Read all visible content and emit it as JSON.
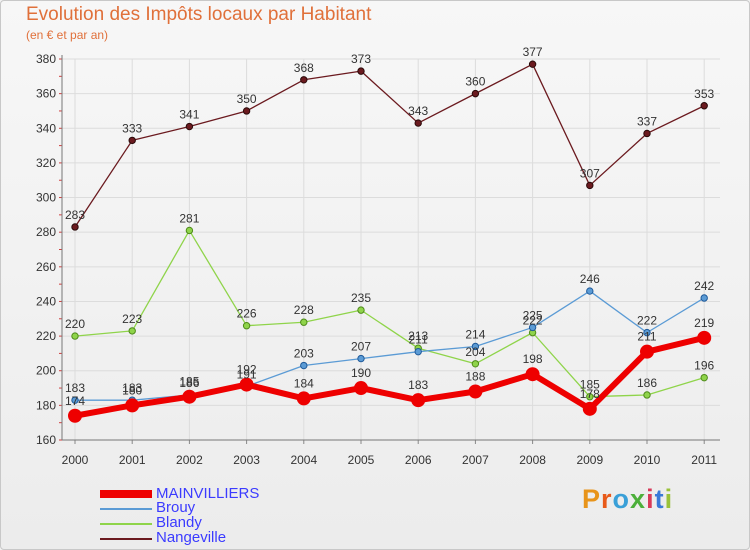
{
  "chart_data": {
    "type": "line",
    "title": "Evolution des Impôts locaux par Habitant",
    "subtitle": "(en € et par an)",
    "xlabel": "",
    "ylabel": "",
    "ylim": [
      160,
      380
    ],
    "yticks": [
      "160",
      "180",
      "200",
      "220",
      "240",
      "260",
      "280",
      "300",
      "320",
      "340",
      "360",
      "380"
    ],
    "categories": [
      "2000",
      "2001",
      "2002",
      "2003",
      "2004",
      "2005",
      "2006",
      "2007",
      "2008",
      "2009",
      "2010",
      "2011"
    ],
    "series": [
      {
        "name": "Nangeville",
        "color": "#6b1a1f",
        "values": [
          283,
          333,
          341,
          350,
          368,
          373,
          343,
          360,
          377,
          307,
          337,
          353
        ]
      },
      {
        "name": "Blandy",
        "color": "#8fd44a",
        "values": [
          220,
          223,
          281,
          226,
          228,
          235,
          213,
          204,
          222,
          185,
          186,
          196
        ]
      },
      {
        "name": "Brouy",
        "color": "#5b9bd5",
        "values": [
          183,
          183,
          186,
          191,
          203,
          207,
          211,
          214,
          225,
          246,
          222,
          242
        ]
      },
      {
        "name": "MAINVILLIERS",
        "color": "#ee0000",
        "values": [
          174,
          180,
          185,
          192,
          184,
          190,
          183,
          188,
          198,
          178,
          211,
          219
        ]
      }
    ],
    "legend": [
      "MAINVILLIERS",
      "Brouy",
      "Blandy",
      "Nangeville"
    ],
    "legend_position": "bottom-left"
  },
  "logo": {
    "letters": [
      "P",
      "r",
      "o",
      "x",
      "i",
      "t",
      "i"
    ]
  }
}
